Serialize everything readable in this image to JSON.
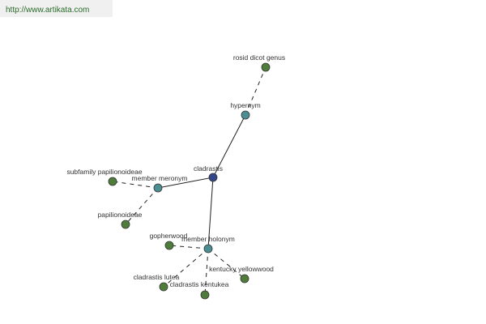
{
  "url": "http://www.artikata.com",
  "nodes": [
    {
      "label": "cladrastis"
    },
    {
      "label": "hypernym"
    },
    {
      "label": "rosid dicot genus"
    },
    {
      "label": "member meronym"
    },
    {
      "label": "subfamily papilionoideae"
    },
    {
      "label": "papilionoideae"
    },
    {
      "label": "member holonym"
    },
    {
      "label": "gopherwood"
    },
    {
      "label": "kentucky yellowwood"
    },
    {
      "label": "cladrastis lutea"
    },
    {
      "label": "cladrastis kentukea"
    }
  ]
}
